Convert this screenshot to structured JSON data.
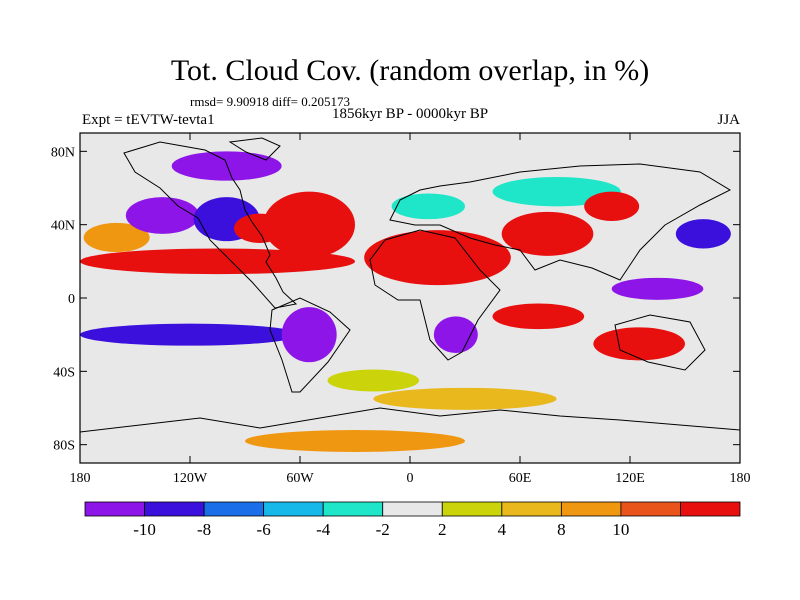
{
  "chart_data": {
    "type": "heatmap",
    "title": "Tot. Cloud Cov. (random overlap, in %)",
    "stats_line": "rmsd= 9.90918  diff= 0.205173",
    "experiment_label": "Expt = tEVTW-tevta1",
    "period_label": "1856kyr BP - 0000kyr BP",
    "season_label": "JJA",
    "x_axis": {
      "range": [
        -180,
        180
      ],
      "ticks": [
        {
          "value": -180,
          "label": "180"
        },
        {
          "value": -120,
          "label": "120W"
        },
        {
          "value": -60,
          "label": "60W"
        },
        {
          "value": 0,
          "label": "0"
        },
        {
          "value": 60,
          "label": "60E"
        },
        {
          "value": 120,
          "label": "120E"
        },
        {
          "value": 180,
          "label": "180"
        }
      ]
    },
    "y_axis": {
      "range": [
        -90,
        90
      ],
      "ticks": [
        {
          "value": 80,
          "label": "80N"
        },
        {
          "value": 40,
          "label": "40N"
        },
        {
          "value": 0,
          "label": "0"
        },
        {
          "value": -40,
          "label": "40S"
        },
        {
          "value": -80,
          "label": "80S"
        }
      ]
    },
    "colorbar": {
      "colors": [
        "#8d15e8",
        "#3c10dc",
        "#1a6ee8",
        "#15b8e8",
        "#1fe6c9",
        "#e8e8e8",
        "#cbd40b",
        "#e8b81c",
        "#f09712",
        "#e8541a",
        "#e8100f"
      ],
      "labels": [
        "-10",
        "-8",
        "-6",
        "-4",
        "-2",
        "2",
        "4",
        "8",
        "10"
      ]
    },
    "regions": [
      {
        "name": "subtropical-pacific-north-band",
        "lon": -105,
        "lat": 20,
        "rlon": 75,
        "rlat": 7,
        "value": 12
      },
      {
        "name": "north-pacific-positive",
        "lon": -160,
        "lat": 33,
        "rlon": 18,
        "rlat": 8,
        "value": 9
      },
      {
        "name": "north-pacific-negative",
        "lon": -135,
        "lat": 45,
        "rlon": 20,
        "rlat": 10,
        "value": -11
      },
      {
        "name": "north-america-interior-negative",
        "lon": -100,
        "lat": 43,
        "rlon": 18,
        "rlat": 12,
        "value": -10
      },
      {
        "name": "east-us-positive",
        "lon": -82,
        "lat": 38,
        "rlon": 14,
        "rlat": 8,
        "value": 12
      },
      {
        "name": "canada-arctic-negative",
        "lon": -100,
        "lat": 72,
        "rlon": 30,
        "rlat": 8,
        "value": -11
      },
      {
        "name": "north-atlantic-positive",
        "lon": -55,
        "lat": 40,
        "rlon": 25,
        "rlat": 18,
        "value": 12
      },
      {
        "name": "sahara-arabia-positive",
        "lon": 15,
        "lat": 22,
        "rlon": 40,
        "rlat": 15,
        "value": 12
      },
      {
        "name": "europe-cyan",
        "lon": 10,
        "lat": 50,
        "rlon": 20,
        "rlat": 7,
        "value": -3
      },
      {
        "name": "siberia-cyan",
        "lon": 80,
        "lat": 58,
        "rlon": 35,
        "rlat": 8,
        "value": -4
      },
      {
        "name": "central-asia-positive",
        "lon": 75,
        "lat": 35,
        "rlon": 25,
        "rlat": 12,
        "value": 12
      },
      {
        "name": "mongolia-positive",
        "lon": 110,
        "lat": 50,
        "rlon": 15,
        "rlat": 8,
        "value": 11
      },
      {
        "name": "nw-pacific-negative",
        "lon": 160,
        "lat": 35,
        "rlon": 15,
        "rlat": 8,
        "value": -10
      },
      {
        "name": "indian-ocean-positive",
        "lon": 70,
        "lat": -10,
        "rlon": 25,
        "rlat": 7,
        "value": 11
      },
      {
        "name": "maritime-continent-negative",
        "lon": 135,
        "lat": 5,
        "rlon": 25,
        "rlat": 6,
        "value": -11
      },
      {
        "name": "australia-positive",
        "lon": 125,
        "lat": -25,
        "rlon": 25,
        "rlat": 9,
        "value": 11
      },
      {
        "name": "south-pacific-negative",
        "lon": -120,
        "lat": -20,
        "rlon": 60,
        "rlat": 6,
        "value": -10
      },
      {
        "name": "south-america-negative",
        "lon": -55,
        "lat": -20,
        "rlon": 15,
        "rlat": 15,
        "value": -11
      },
      {
        "name": "southern-africa-negative",
        "lon": 25,
        "lat": -20,
        "rlon": 12,
        "rlat": 10,
        "value": -11
      },
      {
        "name": "south-atlantic-yellow",
        "lon": -20,
        "lat": -45,
        "rlon": 25,
        "rlat": 6,
        "value": 3
      },
      {
        "name": "southern-ocean-yellow",
        "lon": 30,
        "lat": -55,
        "rlon": 50,
        "rlat": 6,
        "value": 4
      },
      {
        "name": "antarctic-positive",
        "lon": -30,
        "lat": -78,
        "rlon": 60,
        "rlat": 6,
        "value": 8
      }
    ]
  }
}
